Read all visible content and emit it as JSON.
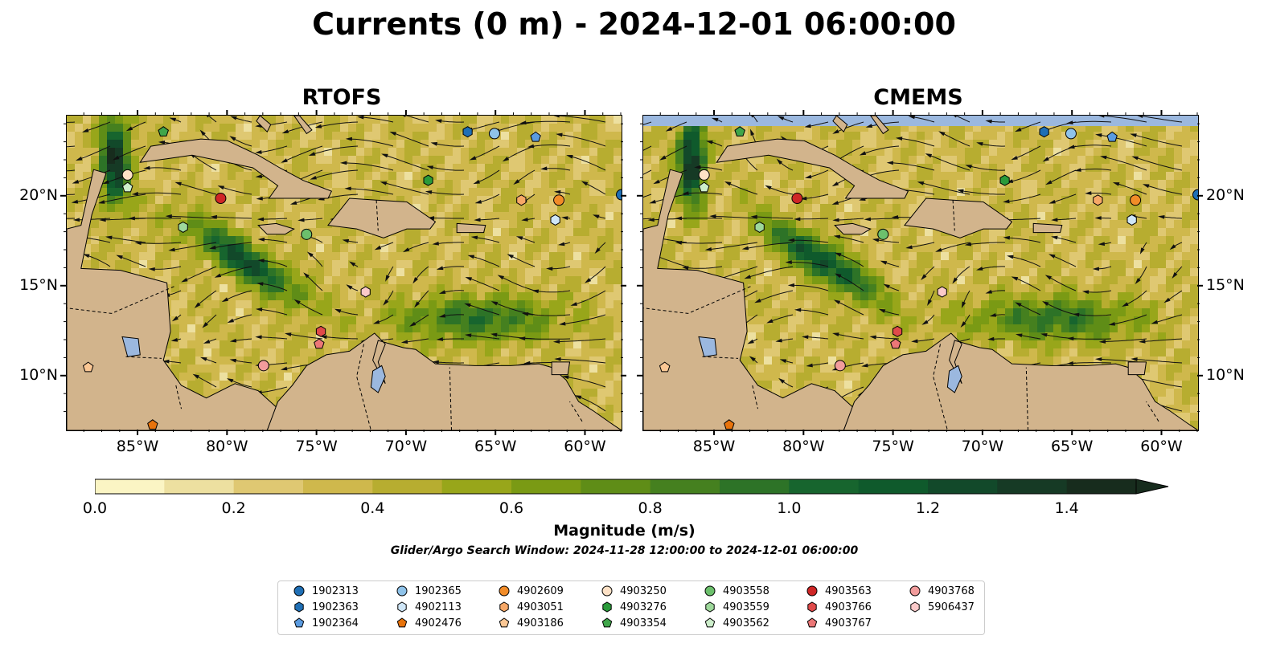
{
  "title": "Currents (0 m) - 2024-12-01 06:00:00",
  "panels": [
    {
      "id": "rtofs",
      "title": "RTOFS"
    },
    {
      "id": "cmems",
      "title": "CMEMS"
    }
  ],
  "x_ticks": [
    {
      "lon": -85,
      "label": "85°W"
    },
    {
      "lon": -80,
      "label": "80°W"
    },
    {
      "lon": -75,
      "label": "75°W"
    },
    {
      "lon": -70,
      "label": "70°W"
    },
    {
      "lon": -65,
      "label": "65°W"
    },
    {
      "lon": -60,
      "label": "60°W"
    }
  ],
  "y_ticks": [
    {
      "lat": 20,
      "label": "20°N"
    },
    {
      "lat": 15,
      "label": "15°N"
    },
    {
      "lat": 10,
      "label": "10°N"
    }
  ],
  "map_extent": {
    "lon": [
      -89,
      -58
    ],
    "lat": [
      7,
      24.5
    ]
  },
  "colorbar": {
    "label": "Magnitude (m/s)",
    "min": 0.0,
    "max": 1.5,
    "step": 0.1,
    "extend": "max",
    "ticks": [
      "0.0",
      "0.2",
      "0.4",
      "0.6",
      "0.8",
      "1.0",
      "1.2",
      "1.4"
    ],
    "colors": [
      "#fbf5c4",
      "#ede0a0",
      "#dfc872",
      "#cfb84c",
      "#b7ad30",
      "#98a61a",
      "#7a9a14",
      "#5f8d17",
      "#45801f",
      "#2d7327",
      "#17652e",
      "#0f5a2c",
      "#12492a",
      "#163a25",
      "#172c1d"
    ]
  },
  "search_window": "Glider/Argo Search Window: 2024-11-28 12:00:00 to 2024-12-01 06:00:00",
  "legend": [
    {
      "id": "1902313",
      "marker": "circle",
      "color": "#1f6fb5"
    },
    {
      "id": "1902363",
      "marker": "hexagon",
      "color": "#1f6fb5"
    },
    {
      "id": "1902364",
      "marker": "pentagon",
      "color": "#5b9be0"
    },
    {
      "id": "1902365",
      "marker": "circle",
      "color": "#8fc3ea"
    },
    {
      "id": "4902113",
      "marker": "hexagon",
      "color": "#cfe6f7"
    },
    {
      "id": "4902476",
      "marker": "pentagon",
      "color": "#e8730c"
    },
    {
      "id": "4902609",
      "marker": "circle",
      "color": "#f28c28"
    },
    {
      "id": "4903051",
      "marker": "hexagon",
      "color": "#f7a867"
    },
    {
      "id": "4903186",
      "marker": "pentagon",
      "color": "#fbc794"
    },
    {
      "id": "4903250",
      "marker": "circle",
      "color": "#fde1c6"
    },
    {
      "id": "4903276",
      "marker": "hexagon",
      "color": "#2a9a3a"
    },
    {
      "id": "4903354",
      "marker": "pentagon",
      "color": "#3fa64a"
    },
    {
      "id": "4903558",
      "marker": "circle",
      "color": "#6cc06c"
    },
    {
      "id": "4903559",
      "marker": "hexagon",
      "color": "#9ed89b"
    },
    {
      "id": "4903562",
      "marker": "pentagon",
      "color": "#cdeecb"
    },
    {
      "id": "4903563",
      "marker": "circle",
      "color": "#cf2626"
    },
    {
      "id": "4903766",
      "marker": "hexagon",
      "color": "#e04a4a"
    },
    {
      "id": "4903767",
      "marker": "pentagon",
      "color": "#ec7777"
    },
    {
      "id": "4903768",
      "marker": "circle",
      "color": "#f29c9c"
    },
    {
      "id": "5906437",
      "marker": "hexagon",
      "color": "#fbc9c9"
    }
  ],
  "floats_on_map": [
    {
      "id": "1902313",
      "lon": -58.0,
      "lat": 20.1
    },
    {
      "id": "1902363",
      "lon": -66.6,
      "lat": 23.6
    },
    {
      "id": "1902364",
      "lon": -62.8,
      "lat": 23.3
    },
    {
      "id": "1902365",
      "lon": -65.1,
      "lat": 23.5
    },
    {
      "id": "4902113",
      "lon": -61.7,
      "lat": 18.7
    },
    {
      "id": "4902476",
      "lon": -84.2,
      "lat": 7.3
    },
    {
      "id": "4902609",
      "lon": -61.5,
      "lat": 19.8
    },
    {
      "id": "4903051",
      "lon": -63.6,
      "lat": 19.8
    },
    {
      "id": "4903186",
      "lon": -87.8,
      "lat": 10.5
    },
    {
      "id": "4903250",
      "lon": -85.6,
      "lat": 21.2
    },
    {
      "id": "4903276",
      "lon": -68.8,
      "lat": 20.9
    },
    {
      "id": "4903354",
      "lon": -83.6,
      "lat": 23.6
    },
    {
      "id": "4903558",
      "lon": -75.6,
      "lat": 17.9
    },
    {
      "id": "4903559",
      "lon": -82.5,
      "lat": 18.3
    },
    {
      "id": "4903562",
      "lon": -85.6,
      "lat": 20.5
    },
    {
      "id": "4903563",
      "lon": -80.4,
      "lat": 19.9
    },
    {
      "id": "4903766",
      "lon": -74.8,
      "lat": 12.5
    },
    {
      "id": "4903767",
      "lon": -74.9,
      "lat": 11.8
    },
    {
      "id": "4903768",
      "lon": -78.0,
      "lat": 10.6
    },
    {
      "id": "5906437",
      "lon": -72.3,
      "lat": 14.7
    }
  ]
}
